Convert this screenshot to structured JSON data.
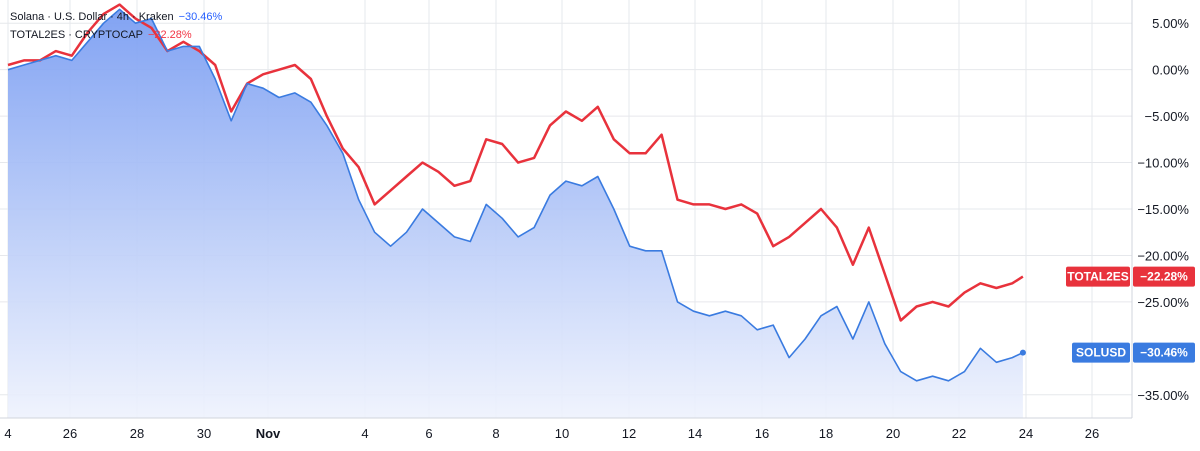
{
  "legend": {
    "series1": {
      "symbol": "Solana",
      "quote": "U.S. Dollar",
      "interval": "4h",
      "exchange": "Kraken",
      "change": "−30.46%"
    },
    "series2": {
      "symbol": "TOTAL2ES",
      "exchange": "CRYPTOCAP",
      "change": "−22.28%"
    },
    "separator": "·"
  },
  "colors": {
    "solusd": "#3a7be0",
    "total2es": "#e8323c",
    "area_top": "#7b9ef2",
    "area_bottom": "#eef2fd",
    "grid": "#e6e8ec"
  },
  "chart_data": {
    "type": "line",
    "title": "",
    "xlabel": "",
    "ylabel": "",
    "x_ticks": [
      "4",
      "26",
      "28",
      "30",
      "Nov",
      "4",
      "6",
      "8",
      "10",
      "12",
      "14",
      "16",
      "18",
      "20",
      "22",
      "24",
      "26"
    ],
    "y_ticks": [
      "5.00%",
      "0.00%",
      "−5.00%",
      "−10.00%",
      "−15.00%",
      "−20.00%",
      "−25.00%",
      "−35.00%"
    ],
    "ylim": [
      -37.5,
      7.5
    ],
    "xlim": [
      "Oct 24",
      "Nov 27"
    ],
    "grid": true,
    "series": [
      {
        "name": "SOLUSD",
        "label": "SOLUSD",
        "last_value": "−30.46%",
        "area_fill": true,
        "x": [
          "Oct 24 00:00",
          "Oct 24 12:00",
          "Oct 25 00:00",
          "Oct 25 12:00",
          "Oct 26 00:00",
          "Oct 26 12:00",
          "Oct 27 00:00",
          "Oct 27 12:00",
          "Oct 28 00:00",
          "Oct 28 12:00",
          "Oct 29 00:00",
          "Oct 29 12:00",
          "Oct 30 00:00",
          "Oct 30 12:00",
          "Oct 31 00:00",
          "Oct 31 12:00",
          "Nov 1 00:00",
          "Nov 1 12:00",
          "Nov 2 00:00",
          "Nov 2 12:00",
          "Nov 3 00:00",
          "Nov 3 12:00",
          "Nov 4 00:00",
          "Nov 4 12:00",
          "Nov 5 00:00",
          "Nov 5 12:00",
          "Nov 6 00:00",
          "Nov 6 12:00",
          "Nov 7 00:00",
          "Nov 7 12:00",
          "Nov 8 00:00",
          "Nov 8 12:00",
          "Nov 9 00:00",
          "Nov 9 12:00",
          "Nov 10 00:00",
          "Nov 10 12:00",
          "Nov 11 00:00",
          "Nov 11 12:00",
          "Nov 12 00:00",
          "Nov 12 12:00",
          "Nov 13 00:00",
          "Nov 13 12:00",
          "Nov 14 00:00",
          "Nov 14 12:00",
          "Nov 15 00:00",
          "Nov 15 12:00",
          "Nov 16 00:00",
          "Nov 16 12:00",
          "Nov 17 00:00",
          "Nov 17 12:00",
          "Nov 18 00:00",
          "Nov 18 12:00",
          "Nov 19 00:00",
          "Nov 19 12:00",
          "Nov 20 00:00",
          "Nov 20 12:00",
          "Nov 21 00:00",
          "Nov 21 12:00",
          "Nov 22 00:00",
          "Nov 22 12:00",
          "Nov 23 00:00",
          "Nov 23 12:00",
          "Nov 24 00:00",
          "Nov 24 12:00",
          "Nov 24 20:00"
        ],
        "values": [
          0.0,
          0.5,
          1.0,
          1.5,
          1.0,
          3.0,
          5.0,
          6.5,
          5.0,
          5.5,
          2.0,
          2.5,
          2.5,
          -1.0,
          -5.5,
          -1.5,
          -2.0,
          -3.0,
          -2.5,
          -3.5,
          -6.0,
          -9.0,
          -14.0,
          -17.5,
          -19.0,
          -17.5,
          -15.0,
          -16.5,
          -18.0,
          -18.5,
          -14.5,
          -16.0,
          -18.0,
          -17.0,
          -13.5,
          -12.0,
          -12.5,
          -11.5,
          -15.0,
          -19.0,
          -19.5,
          -19.5,
          -25.0,
          -26.0,
          -26.5,
          -26.0,
          -26.5,
          -28.0,
          -27.5,
          -31.0,
          -29.0,
          -26.5,
          -25.5,
          -29.0,
          -25.0,
          -29.5,
          -32.5,
          -33.5,
          -33.0,
          -33.5,
          -32.5,
          -30.0,
          -31.5,
          -31.0,
          -30.46
        ]
      },
      {
        "name": "TOTAL2ES",
        "label": "TOTAL2ES",
        "last_value": "−22.28%",
        "area_fill": false,
        "x": [
          "Oct 24 00:00",
          "Oct 24 12:00",
          "Oct 25 00:00",
          "Oct 25 12:00",
          "Oct 26 00:00",
          "Oct 26 12:00",
          "Oct 27 00:00",
          "Oct 27 12:00",
          "Oct 28 00:00",
          "Oct 28 12:00",
          "Oct 29 00:00",
          "Oct 29 12:00",
          "Oct 30 00:00",
          "Oct 30 12:00",
          "Oct 31 00:00",
          "Oct 31 12:00",
          "Nov 1 00:00",
          "Nov 1 12:00",
          "Nov 2 00:00",
          "Nov 2 12:00",
          "Nov 3 00:00",
          "Nov 3 12:00",
          "Nov 4 00:00",
          "Nov 4 12:00",
          "Nov 5 00:00",
          "Nov 5 12:00",
          "Nov 6 00:00",
          "Nov 6 12:00",
          "Nov 7 00:00",
          "Nov 7 12:00",
          "Nov 8 00:00",
          "Nov 8 12:00",
          "Nov 9 00:00",
          "Nov 9 12:00",
          "Nov 10 00:00",
          "Nov 10 12:00",
          "Nov 11 00:00",
          "Nov 11 12:00",
          "Nov 12 00:00",
          "Nov 12 12:00",
          "Nov 13 00:00",
          "Nov 13 12:00",
          "Nov 14 00:00",
          "Nov 14 12:00",
          "Nov 15 00:00",
          "Nov 15 12:00",
          "Nov 16 00:00",
          "Nov 16 12:00",
          "Nov 17 00:00",
          "Nov 17 12:00",
          "Nov 18 00:00",
          "Nov 18 12:00",
          "Nov 19 00:00",
          "Nov 19 12:00",
          "Nov 20 00:00",
          "Nov 20 12:00",
          "Nov 21 00:00",
          "Nov 21 12:00",
          "Nov 22 00:00",
          "Nov 22 12:00",
          "Nov 23 00:00",
          "Nov 23 12:00",
          "Nov 24 00:00",
          "Nov 24 12:00",
          "Nov 24 20:00"
        ],
        "values": [
          0.5,
          1.0,
          1.0,
          2.0,
          1.5,
          4.0,
          6.0,
          7.0,
          5.5,
          4.5,
          2.0,
          3.0,
          2.0,
          0.5,
          -4.5,
          -1.5,
          -0.5,
          0.0,
          0.5,
          -1.0,
          -5.0,
          -8.5,
          -10.5,
          -14.5,
          -13.0,
          -11.5,
          -10.0,
          -11.0,
          -12.5,
          -12.0,
          -7.5,
          -8.0,
          -10.0,
          -9.5,
          -6.0,
          -4.5,
          -5.5,
          -4.0,
          -7.5,
          -9.0,
          -9.0,
          -7.0,
          -14.0,
          -14.5,
          -14.5,
          -15.0,
          -14.5,
          -15.5,
          -19.0,
          -18.0,
          -16.5,
          -15.0,
          -17.0,
          -21.0,
          -17.0,
          -22.0,
          -27.0,
          -25.5,
          -25.0,
          -25.5,
          -24.0,
          -23.0,
          -23.5,
          -23.0,
          -22.28
        ]
      }
    ]
  }
}
